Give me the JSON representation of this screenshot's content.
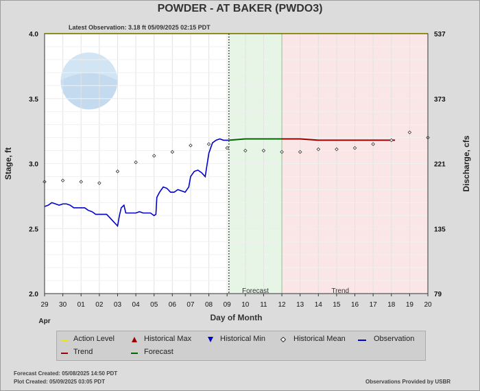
{
  "title": "POWDER - AT BAKER  (PWDO3)",
  "latest_observation": "Latest Observation: 3.18 ft 05/09/2025 02:15 PDT",
  "footer": {
    "forecast_created": "Forecast Created: 05/08/2025 14:50 PDT",
    "plot_created": "Plot Created: 05/09/2025 03:05 PDT",
    "provided_by": "Observations Provided by USBR"
  },
  "colors": {
    "observation": "#0000cc",
    "forecast": "#006600",
    "trend": "#990000",
    "action_level": "#e8e800",
    "forecast_bg": "#e6f5e6",
    "trend_bg": "#fae6e6",
    "mean": "#333333"
  },
  "legend": {
    "action_level": "Action Level",
    "historical_max": "Historical Max",
    "historical_min": "Historical Min",
    "historical_mean": "Historical Mean",
    "observation": "Observation",
    "trend": "Trend",
    "forecast": "Forecast"
  },
  "chart_data": {
    "type": "line",
    "xlabel": "Day of Month",
    "ylabel": "Stage, ft",
    "y2label": "Discharge, cfs",
    "x_month_label": "Apr",
    "xlim": [
      0,
      21
    ],
    "ylim": [
      2.0,
      4.0
    ],
    "x_ticks": [
      "29",
      "30",
      "01",
      "02",
      "03",
      "04",
      "05",
      "06",
      "07",
      "08",
      "09",
      "10",
      "11",
      "12",
      "13",
      "14",
      "15",
      "16",
      "17",
      "18",
      "19",
      "20"
    ],
    "y_ticks": [
      "2.0",
      "2.5",
      "3.0",
      "3.5",
      "4.0"
    ],
    "y2_ticks": [
      {
        "stage": 2.0,
        "label": "79"
      },
      {
        "stage": 2.5,
        "label": "135"
      },
      {
        "stage": 3.0,
        "label": "221"
      },
      {
        "stage": 3.5,
        "label": "373"
      },
      {
        "stage": 4.0,
        "label": "537"
      }
    ],
    "region_labels": {
      "forecast": "Forecast",
      "trend": "Trend"
    },
    "action_level": 4.0,
    "observed_until": 10.1,
    "forecast_end": 13.0,
    "trend_end": 19.2,
    "series": [
      {
        "name": "Observation",
        "points": [
          [
            0.0,
            2.67
          ],
          [
            0.2,
            2.68
          ],
          [
            0.4,
            2.7
          ],
          [
            0.6,
            2.69
          ],
          [
            0.8,
            2.68
          ],
          [
            1.0,
            2.69
          ],
          [
            1.2,
            2.69
          ],
          [
            1.4,
            2.68
          ],
          [
            1.6,
            2.66
          ],
          [
            1.8,
            2.66
          ],
          [
            2.0,
            2.66
          ],
          [
            2.2,
            2.66
          ],
          [
            2.4,
            2.64
          ],
          [
            2.6,
            2.63
          ],
          [
            2.8,
            2.61
          ],
          [
            3.0,
            2.61
          ],
          [
            3.2,
            2.61
          ],
          [
            3.4,
            2.61
          ],
          [
            3.6,
            2.58
          ],
          [
            3.8,
            2.55
          ],
          [
            4.0,
            2.52
          ],
          [
            4.1,
            2.6
          ],
          [
            4.2,
            2.66
          ],
          [
            4.35,
            2.68
          ],
          [
            4.45,
            2.62
          ],
          [
            4.6,
            2.62
          ],
          [
            4.8,
            2.62
          ],
          [
            5.0,
            2.62
          ],
          [
            5.2,
            2.63
          ],
          [
            5.4,
            2.62
          ],
          [
            5.6,
            2.62
          ],
          [
            5.8,
            2.62
          ],
          [
            6.0,
            2.6
          ],
          [
            6.1,
            2.61
          ],
          [
            6.15,
            2.74
          ],
          [
            6.3,
            2.78
          ],
          [
            6.5,
            2.82
          ],
          [
            6.7,
            2.81
          ],
          [
            6.9,
            2.78
          ],
          [
            7.1,
            2.78
          ],
          [
            7.3,
            2.8
          ],
          [
            7.5,
            2.79
          ],
          [
            7.7,
            2.78
          ],
          [
            7.9,
            2.82
          ],
          [
            8.0,
            2.9
          ],
          [
            8.2,
            2.94
          ],
          [
            8.4,
            2.95
          ],
          [
            8.6,
            2.93
          ],
          [
            8.8,
            2.9
          ],
          [
            9.0,
            3.08
          ],
          [
            9.2,
            3.16
          ],
          [
            9.4,
            3.18
          ],
          [
            9.6,
            3.19
          ],
          [
            9.8,
            3.18
          ],
          [
            10.0,
            3.18
          ],
          [
            10.1,
            3.18
          ]
        ]
      },
      {
        "name": "Forecast",
        "points": [
          [
            10.1,
            3.18
          ],
          [
            11.0,
            3.19
          ],
          [
            12.0,
            3.19
          ],
          [
            13.0,
            3.19
          ]
        ]
      },
      {
        "name": "Trend",
        "points": [
          [
            13.0,
            3.19
          ],
          [
            14.0,
            3.19
          ],
          [
            15.0,
            3.18
          ],
          [
            16.0,
            3.18
          ],
          [
            17.0,
            3.18
          ],
          [
            18.0,
            3.18
          ],
          [
            19.2,
            3.18
          ]
        ]
      },
      {
        "name": "Historical Mean",
        "points": [
          [
            0,
            2.86
          ],
          [
            1,
            2.87
          ],
          [
            2,
            2.86
          ],
          [
            3,
            2.85
          ],
          [
            4,
            2.94
          ],
          [
            5,
            3.01
          ],
          [
            6,
            3.06
          ],
          [
            7,
            3.09
          ],
          [
            8,
            3.14
          ],
          [
            9,
            3.15
          ],
          [
            10,
            3.12
          ],
          [
            11,
            3.1
          ],
          [
            12,
            3.1
          ],
          [
            13,
            3.09
          ],
          [
            14,
            3.09
          ],
          [
            15,
            3.11
          ],
          [
            16,
            3.11
          ],
          [
            17,
            3.12
          ],
          [
            18,
            3.15
          ],
          [
            19,
            3.18
          ],
          [
            20,
            3.24
          ],
          [
            21,
            3.2
          ]
        ]
      }
    ]
  }
}
